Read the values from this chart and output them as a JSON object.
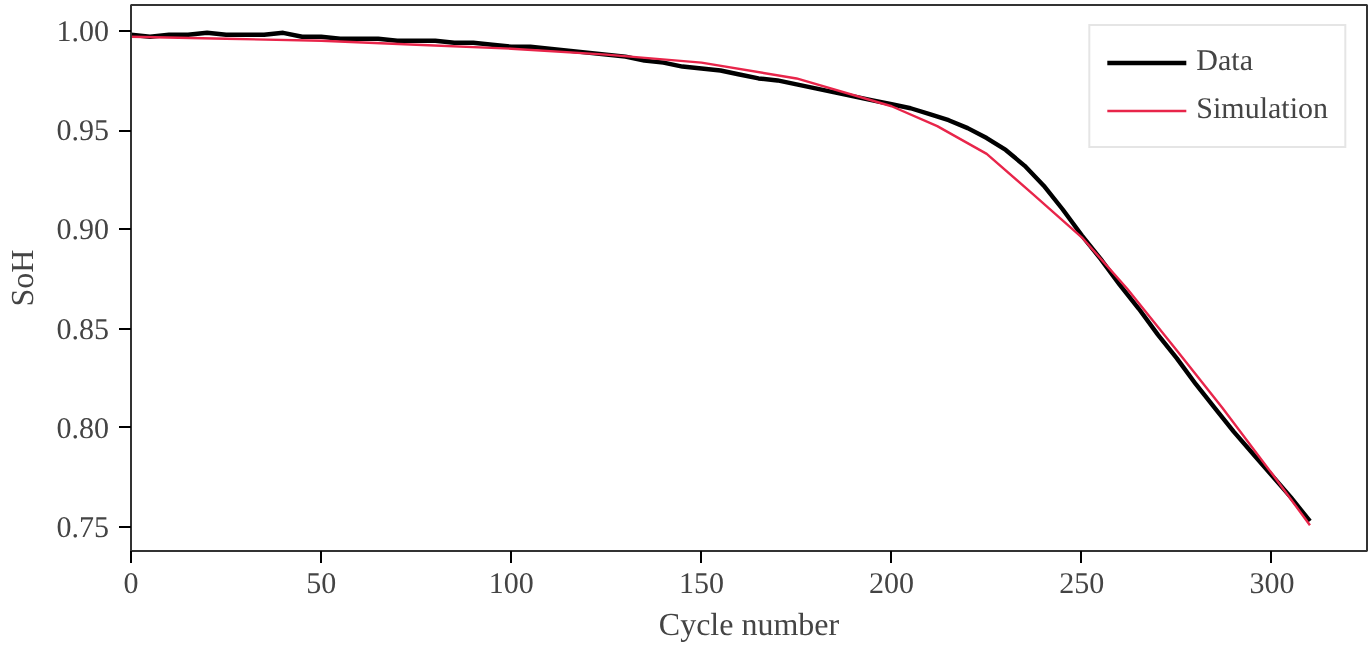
{
  "chart_data": {
    "type": "line",
    "xlabel": "Cycle number",
    "ylabel": "SoH",
    "xlim": [
      0,
      325
    ],
    "ylim": [
      0.738,
      1.013
    ],
    "xticks": [
      0,
      50,
      100,
      150,
      200,
      250,
      300
    ],
    "yticks": [
      {
        "value": 0.75,
        "label": "0.75"
      },
      {
        "value": 0.8,
        "label": "0.80"
      },
      {
        "value": 0.85,
        "label": "0.85"
      },
      {
        "value": 0.9,
        "label": "0.90"
      },
      {
        "value": 0.95,
        "label": "0.95"
      },
      {
        "value": 1.0,
        "label": "1.00"
      }
    ],
    "legend": "top right",
    "grid": false,
    "series": [
      {
        "name": "Data",
        "color": "#000000",
        "x": [
          0,
          5,
          10,
          15,
          20,
          25,
          30,
          35,
          40,
          45,
          50,
          55,
          60,
          65,
          70,
          75,
          80,
          85,
          90,
          95,
          100,
          105,
          110,
          115,
          120,
          125,
          130,
          135,
          140,
          145,
          150,
          155,
          160,
          165,
          170,
          175,
          180,
          185,
          190,
          195,
          200,
          205,
          210,
          215,
          220,
          225,
          230,
          235,
          240,
          245,
          250,
          255,
          260,
          265,
          270,
          275,
          280,
          285,
          290,
          295,
          300,
          305,
          310
        ],
        "values": [
          0.998,
          0.997,
          0.998,
          0.998,
          0.999,
          0.998,
          0.998,
          0.998,
          0.999,
          0.997,
          0.997,
          0.996,
          0.996,
          0.996,
          0.995,
          0.995,
          0.995,
          0.994,
          0.994,
          0.993,
          0.992,
          0.992,
          0.991,
          0.99,
          0.989,
          0.988,
          0.987,
          0.985,
          0.984,
          0.982,
          0.981,
          0.98,
          0.978,
          0.976,
          0.975,
          0.973,
          0.971,
          0.969,
          0.967,
          0.965,
          0.963,
          0.961,
          0.958,
          0.955,
          0.951,
          0.946,
          0.94,
          0.932,
          0.922,
          0.91,
          0.897,
          0.885,
          0.872,
          0.86,
          0.847,
          0.835,
          0.822,
          0.81,
          0.798,
          0.787,
          0.776,
          0.765,
          0.753
        ]
      },
      {
        "name": "Simulation",
        "color": "#e8254a",
        "x": [
          0,
          25,
          50,
          75,
          100,
          125,
          150,
          175,
          200,
          212,
          225,
          237,
          250,
          262,
          275,
          287,
          300,
          310
        ],
        "values": [
          0.997,
          0.996,
          0.995,
          0.993,
          0.991,
          0.988,
          0.984,
          0.976,
          0.962,
          0.952,
          0.938,
          0.918,
          0.896,
          0.87,
          0.839,
          0.81,
          0.777,
          0.751
        ]
      }
    ]
  }
}
